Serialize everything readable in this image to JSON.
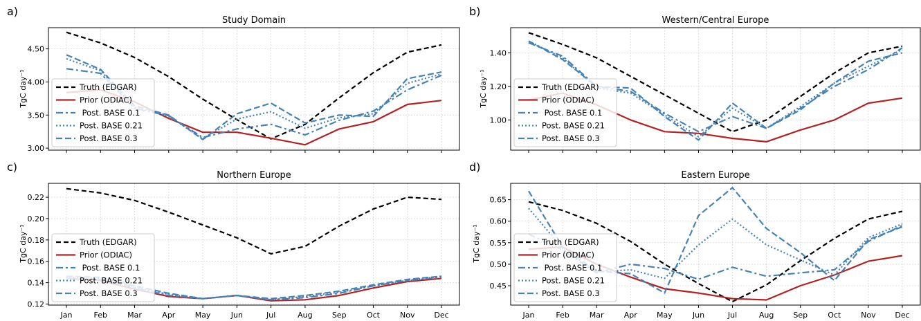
{
  "colors": {
    "truth": "#000000",
    "prior": "#b22222",
    "post": "#4682b4",
    "grid": "#d8d8d8",
    "frame": "#000000"
  },
  "chart_data": [
    {
      "panel_label": "a)",
      "type": "line",
      "title": "Study Domain",
      "ylabel": "TgC day⁻¹",
      "ylim": [
        2.97,
        4.82
      ],
      "yticks": [
        3.0,
        3.5,
        4.0,
        4.5
      ],
      "ytick_labels": [
        "3.00",
        "3.50",
        "4.00",
        "4.50"
      ],
      "categories": [
        "Jan",
        "Feb",
        "Mar",
        "Apr",
        "May",
        "Jun",
        "Jul",
        "Aug",
        "Sep",
        "Oct",
        "Nov",
        "Dec"
      ],
      "show_xtick_labels": false,
      "grid": true,
      "legend_placement": "lower-left",
      "series": [
        {
          "name": "Truth (EDGAR)",
          "style": "truth",
          "values": [
            4.75,
            4.59,
            4.37,
            4.08,
            3.74,
            3.43,
            3.14,
            3.36,
            3.76,
            4.14,
            4.45,
            4.56
          ]
        },
        {
          "name": "Prior (ODIAC)",
          "style": "prior",
          "values": [
            3.84,
            3.88,
            3.7,
            3.45,
            3.24,
            3.24,
            3.15,
            3.05,
            3.29,
            3.4,
            3.66,
            3.72
          ]
        },
        {
          "name": " Post. BASE 0.1",
          "style": "dashdot",
          "values": [
            4.2,
            4.13,
            3.6,
            3.49,
            3.16,
            3.29,
            3.36,
            3.2,
            3.42,
            3.56,
            3.88,
            4.1
          ]
        },
        {
          "name": "Post. BASE 0.21",
          "style": "dotted",
          "values": [
            4.35,
            4.17,
            3.62,
            3.48,
            3.14,
            3.44,
            3.55,
            3.3,
            3.46,
            3.52,
            3.98,
            4.12
          ]
        },
        {
          "name": "Post. BASE 0.3",
          "style": "dashed",
          "values": [
            4.41,
            4.19,
            3.64,
            3.5,
            3.13,
            3.52,
            3.68,
            3.38,
            3.5,
            3.48,
            4.05,
            4.15
          ]
        }
      ]
    },
    {
      "panel_label": "b)",
      "type": "line",
      "title": "Western/Central Europe",
      "ylabel": "TgC day⁻¹",
      "ylim": [
        0.82,
        1.55
      ],
      "yticks": [
        1.0,
        1.2,
        1.4
      ],
      "ytick_labels": [
        "1.00",
        "1.20",
        "1.40"
      ],
      "categories": [
        "Jan",
        "Feb",
        "Mar",
        "Apr",
        "May",
        "Jun",
        "Jul",
        "Aug",
        "Sep",
        "Oct",
        "Nov",
        "Dec"
      ],
      "show_xtick_labels": false,
      "grid": true,
      "legend_placement": "lower-left",
      "series": [
        {
          "name": "Truth (EDGAR)",
          "style": "truth",
          "values": [
            1.52,
            1.45,
            1.37,
            1.26,
            1.15,
            1.04,
            0.93,
            1.0,
            1.14,
            1.28,
            1.4,
            1.44
          ]
        },
        {
          "name": "Prior (ODIAC)",
          "style": "prior",
          "values": [
            1.12,
            1.16,
            1.09,
            1.0,
            0.93,
            0.92,
            0.89,
            0.87,
            0.94,
            1.0,
            1.1,
            1.13
          ]
        },
        {
          "name": " Post. BASE 0.1",
          "style": "dashdot",
          "values": [
            1.46,
            1.38,
            1.2,
            1.17,
            1.04,
            0.93,
            1.02,
            0.95,
            1.07,
            1.2,
            1.3,
            1.43
          ]
        },
        {
          "name": "Post. BASE 0.21",
          "style": "dotted",
          "values": [
            1.47,
            1.37,
            1.19,
            1.16,
            1.03,
            0.9,
            1.07,
            0.95,
            1.08,
            1.22,
            1.32,
            1.42
          ]
        },
        {
          "name": "Post. BASE 0.3",
          "style": "dashed",
          "values": [
            1.47,
            1.36,
            1.2,
            1.19,
            1.02,
            0.88,
            1.1,
            0.95,
            1.06,
            1.22,
            1.35,
            1.4
          ]
        }
      ]
    },
    {
      "panel_label": "c)",
      "type": "line",
      "title": "Northern Europe",
      "ylabel": "TgC day⁻¹",
      "ylim": [
        0.119,
        0.233
      ],
      "yticks": [
        0.12,
        0.14,
        0.16,
        0.18,
        0.2,
        0.22
      ],
      "ytick_labels": [
        "0.12",
        "0.14",
        "0.16",
        "0.18",
        "0.20",
        "0.22"
      ],
      "categories": [
        "Jan",
        "Feb",
        "Mar",
        "Apr",
        "May",
        "Jun",
        "Jul",
        "Aug",
        "Sep",
        "Oct",
        "Nov",
        "Dec"
      ],
      "show_xtick_labels": true,
      "grid": true,
      "legend_placement": "lower-left",
      "series": [
        {
          "name": "Truth (EDGAR)",
          "style": "truth",
          "values": [
            0.228,
            0.224,
            0.217,
            0.206,
            0.194,
            0.182,
            0.167,
            0.174,
            0.193,
            0.209,
            0.22,
            0.218
          ]
        },
        {
          "name": "Prior (ODIAC)",
          "style": "prior",
          "values": [
            0.144,
            0.142,
            0.134,
            0.127,
            0.125,
            0.128,
            0.123,
            0.124,
            0.128,
            0.135,
            0.141,
            0.144
          ]
        },
        {
          "name": " Post. BASE 0.1",
          "style": "dashdot",
          "values": [
            0.144,
            0.143,
            0.135,
            0.128,
            0.125,
            0.128,
            0.124,
            0.126,
            0.13,
            0.137,
            0.142,
            0.145
          ]
        },
        {
          "name": "Post. BASE 0.21",
          "style": "dotted",
          "values": [
            0.145,
            0.144,
            0.136,
            0.129,
            0.125,
            0.128,
            0.124,
            0.127,
            0.131,
            0.137,
            0.142,
            0.146
          ]
        },
        {
          "name": "Post. BASE 0.3",
          "style": "dashed",
          "values": [
            0.146,
            0.145,
            0.137,
            0.13,
            0.125,
            0.128,
            0.125,
            0.128,
            0.132,
            0.138,
            0.143,
            0.146
          ]
        }
      ]
    },
    {
      "panel_label": "d)",
      "type": "line",
      "title": "Eastern Europe",
      "ylabel": "TgC day⁻¹",
      "ylim": [
        0.405,
        0.688
      ],
      "yticks": [
        0.45,
        0.5,
        0.55,
        0.6,
        0.65
      ],
      "ytick_labels": [
        "0.45",
        "0.50",
        "0.55",
        "0.60",
        "0.65"
      ],
      "categories": [
        "Jan",
        "Feb",
        "Mar",
        "Apr",
        "May",
        "Jun",
        "Jul",
        "Aug",
        "Sep",
        "Oct",
        "Nov",
        "Dec"
      ],
      "show_xtick_labels": true,
      "grid": true,
      "legend_placement": "lower-left",
      "series": [
        {
          "name": "Truth (EDGAR)",
          "style": "truth",
          "values": [
            0.645,
            0.625,
            0.595,
            0.553,
            0.5,
            0.455,
            0.413,
            0.452,
            0.508,
            0.56,
            0.605,
            0.623
          ]
        },
        {
          "name": "Prior (ODIAC)",
          "style": "prior",
          "values": [
            0.535,
            0.54,
            0.5,
            0.47,
            0.443,
            0.433,
            0.42,
            0.417,
            0.45,
            0.475,
            0.507,
            0.52
          ]
        },
        {
          "name": " Post. BASE 0.1",
          "style": "dashdot",
          "values": [
            0.57,
            0.533,
            0.48,
            0.5,
            0.49,
            0.465,
            0.493,
            0.472,
            0.48,
            0.487,
            0.553,
            0.59
          ]
        },
        {
          "name": "Post. BASE 0.21",
          "style": "dotted",
          "values": [
            0.63,
            0.537,
            0.482,
            0.487,
            0.467,
            0.545,
            0.605,
            0.545,
            0.51,
            0.475,
            0.562,
            0.594
          ]
        },
        {
          "name": "Post. BASE 0.3",
          "style": "dashed",
          "values": [
            0.67,
            0.54,
            0.484,
            0.478,
            0.433,
            0.613,
            0.678,
            0.583,
            0.527,
            0.462,
            0.557,
            0.587
          ]
        }
      ]
    }
  ]
}
